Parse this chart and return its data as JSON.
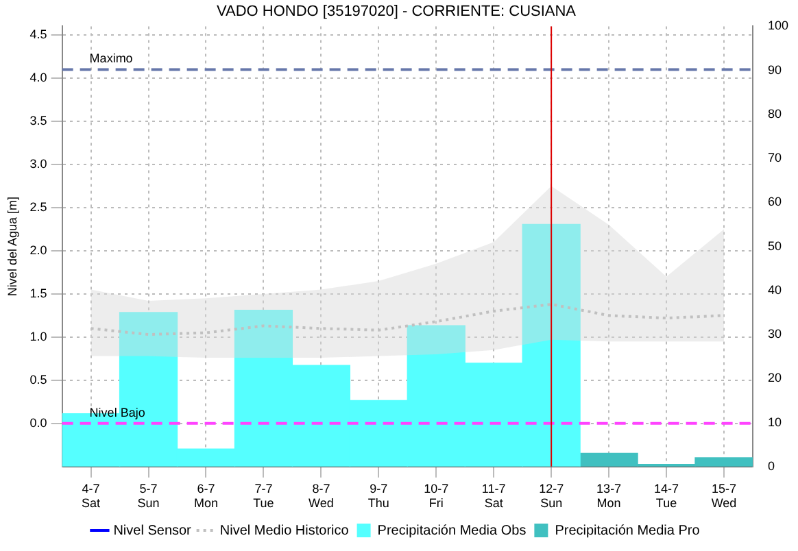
{
  "chart_data": {
    "type": "line",
    "title": "VADO HONDO [35197020] - CORRIENTE: CUSIANA",
    "ylabel": "Nivel del Agua [m]",
    "categories": [
      "4-7\nSat",
      "5-7\nSun",
      "6-7\nMon",
      "7-7\nTue",
      "8-7\nWed",
      "9-7\nThu",
      "10-7\nFri",
      "11-7\nSat",
      "12-7\nSun",
      "13-7\nMon",
      "14-7\nTue",
      "15-7\nWed"
    ],
    "series": [
      {
        "name": "Nivel Sensor",
        "color": "#0000ff",
        "values": [
          null,
          null,
          null,
          null,
          null,
          null,
          null,
          null,
          null,
          null,
          null,
          null
        ]
      },
      {
        "name": "Nivel Medio Historico",
        "color": "#c0c0c0",
        "line_style": "dotted",
        "values": [
          1.1,
          1.03,
          1.05,
          1.13,
          1.1,
          1.08,
          1.18,
          1.3,
          1.38,
          1.25,
          1.22,
          1.25
        ],
        "lower": [
          0.78,
          0.78,
          0.76,
          0.76,
          0.76,
          0.78,
          0.8,
          0.85,
          0.97,
          0.95,
          0.95,
          0.95
        ],
        "upper": [
          1.55,
          1.42,
          1.45,
          1.5,
          1.55,
          1.65,
          1.85,
          2.1,
          2.75,
          2.3,
          1.7,
          2.25
        ]
      },
      {
        "name": "Precipitación Media Obs",
        "type": "bar",
        "axis": "y2",
        "color": "#55ffff",
        "values": [
          12,
          35,
          4,
          35.5,
          23,
          15,
          32,
          23.5,
          55,
          null,
          null,
          null
        ]
      },
      {
        "name": "Precipitación Media Pro",
        "type": "bar",
        "axis": "y2",
        "color": "#40c0c0",
        "values": [
          null,
          null,
          null,
          null,
          null,
          null,
          null,
          null,
          null,
          3,
          0.5,
          2
        ]
      }
    ],
    "ylim": [
      -0.5,
      4.6
    ],
    "yticks": [
      {
        "value": 0,
        "label": "0.0"
      },
      0.5,
      {
        "value": 1,
        "label": "1.0"
      },
      1.5,
      {
        "value": 2,
        "label": "2.0"
      },
      2.5,
      {
        "value": 3,
        "label": "3.0"
      },
      3.5,
      {
        "value": 4,
        "label": "4.0"
      },
      4.5
    ],
    "y2lim": [
      0,
      100
    ],
    "y2ticks": [
      0,
      10,
      20,
      30,
      40,
      50,
      60,
      70,
      80,
      90,
      100
    ],
    "ref_lines": [
      {
        "axis": "y",
        "value": 4.1,
        "label": "Maximo",
        "color": "#6677aa",
        "line_style": "dashed"
      },
      {
        "axis": "y",
        "value": 0,
        "label": "Nivel Bajo",
        "color": "#ff44ff",
        "line_style": "dashed"
      },
      {
        "axis": "x",
        "value": "12-7\nSun",
        "color": "#dd0000",
        "line_style": "solid"
      }
    ],
    "grid": true,
    "legend": "bottom",
    "marker": "none"
  }
}
